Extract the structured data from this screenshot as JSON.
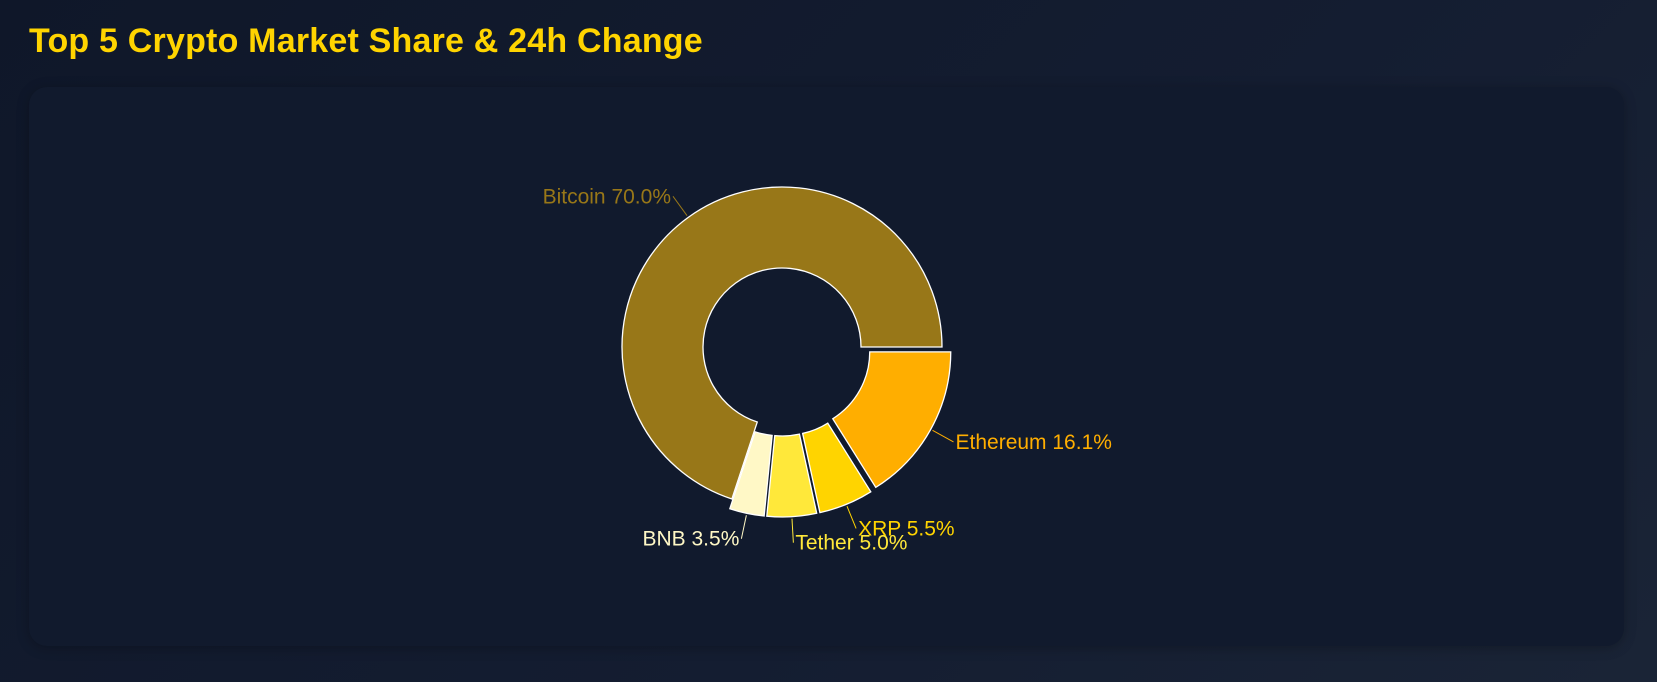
{
  "page": {
    "title": "Top 5 Crypto Market Share & 24h Change"
  },
  "chart_data": {
    "type": "pie",
    "variant": "donut",
    "title": "Top 5 Crypto Market Share & 24h Change",
    "slices": [
      {
        "name": "Bitcoin",
        "value": 70.0,
        "label": "Bitcoin 70.0%",
        "color": "#987718",
        "label_color": "#987718"
      },
      {
        "name": "BNB",
        "value": 3.5,
        "label": "BNB 3.5%",
        "color": "#fff8c6",
        "label_color": "#fff8c6"
      },
      {
        "name": "Tether",
        "value": 5.0,
        "label": "Tether 5.0%",
        "color": "#ffe83a",
        "label_color": "#ffe83a"
      },
      {
        "name": "XRP",
        "value": 5.5,
        "label": "XRP 5.5%",
        "color": "#ffd400",
        "label_color": "#ffd400"
      },
      {
        "name": "Ethereum",
        "value": 16.1,
        "label": "Ethereum 16.1%",
        "color": "#ffae00",
        "label_color": "#ffae00"
      }
    ],
    "exploded": [
      "BNB",
      "Tether",
      "XRP",
      "Ethereum"
    ],
    "legend": "none"
  }
}
